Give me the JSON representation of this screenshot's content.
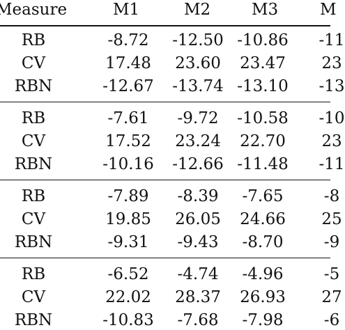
{
  "table": {
    "header": [
      "Measure",
      "M1",
      "M2",
      "M3",
      "M"
    ],
    "groups": [
      {
        "rows": [
          {
            "measure": "RB",
            "m1": "-8.72",
            "m2": "-12.50",
            "m3": "-10.86",
            "m4": "-11"
          },
          {
            "measure": "CV",
            "m1": "17.48",
            "m2": "23.60",
            "m3": "23.47",
            "m4": "23"
          },
          {
            "measure": "RBN",
            "m1": "-12.67",
            "m2": "-13.74",
            "m3": "-13.10",
            "m4": "-13"
          }
        ]
      },
      {
        "rows": [
          {
            "measure": "RB",
            "m1": "-7.61",
            "m2": "-9.72",
            "m3": "-10.58",
            "m4": "-10"
          },
          {
            "measure": "CV",
            "m1": "17.52",
            "m2": "23.24",
            "m3": "22.70",
            "m4": "23"
          },
          {
            "measure": "RBN",
            "m1": "-10.16",
            "m2": "-12.66",
            "m3": "-11.48",
            "m4": "-11"
          }
        ]
      },
      {
        "rows": [
          {
            "measure": "RB",
            "m1": "-7.89",
            "m2": "-8.39",
            "m3": "-7.65",
            "m4": "-8"
          },
          {
            "measure": "CV",
            "m1": "19.85",
            "m2": "26.05",
            "m3": "24.66",
            "m4": "25"
          },
          {
            "measure": "RBN",
            "m1": "-9.31",
            "m2": "-9.43",
            "m3": "-8.70",
            "m4": "-9"
          }
        ]
      },
      {
        "rows": [
          {
            "measure": "RB",
            "m1": "-6.52",
            "m2": "-4.74",
            "m3": "-4.96",
            "m4": "-5"
          },
          {
            "measure": "CV",
            "m1": "22.02",
            "m2": "28.37",
            "m3": "26.93",
            "m4": "27"
          },
          {
            "measure": "RBN",
            "m1": "-10.83",
            "m2": "-7.68",
            "m3": "-7.98",
            "m4": "-6"
          }
        ]
      }
    ]
  }
}
